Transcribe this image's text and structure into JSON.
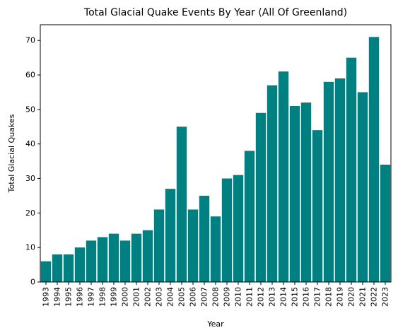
{
  "chart_data": {
    "type": "bar",
    "title": "Total Glacial Quake Events By Year (All Of Greenland)",
    "xlabel": "Year",
    "ylabel": "Total Glacial Quakes",
    "categories": [
      "1993",
      "1994",
      "1995",
      "1996",
      "1997",
      "1998",
      "1999",
      "2000",
      "2001",
      "2002",
      "2003",
      "2004",
      "2005",
      "2006",
      "2007",
      "2008",
      "2009",
      "2010",
      "2011",
      "2012",
      "2013",
      "2014",
      "2015",
      "2016",
      "2017",
      "2018",
      "2019",
      "2020",
      "2021",
      "2022",
      "2023"
    ],
    "values": [
      6,
      8,
      8,
      10,
      12,
      13,
      14,
      12,
      14,
      15,
      21,
      27,
      45,
      21,
      25,
      19,
      30,
      31,
      38,
      49,
      57,
      61,
      51,
      52,
      44,
      58,
      59,
      65,
      55,
      71,
      34
    ],
    "yticks": [
      0,
      10,
      20,
      30,
      40,
      50,
      60,
      70
    ],
    "ylim": [
      0,
      74.55
    ],
    "grid": false,
    "bar_color": "#008080"
  }
}
